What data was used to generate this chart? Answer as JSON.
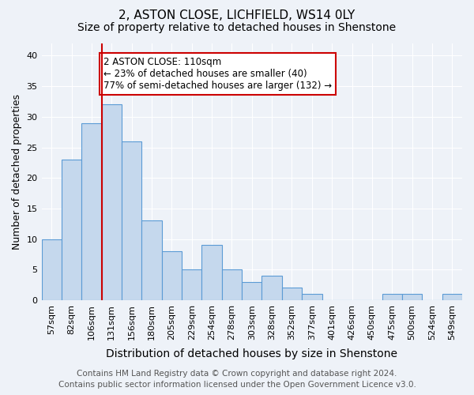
{
  "title": "2, ASTON CLOSE, LICHFIELD, WS14 0LY",
  "subtitle": "Size of property relative to detached houses in Shenstone",
  "xlabel": "Distribution of detached houses by size in Shenstone",
  "ylabel": "Number of detached properties",
  "categories": [
    "57sqm",
    "82sqm",
    "106sqm",
    "131sqm",
    "156sqm",
    "180sqm",
    "205sqm",
    "229sqm",
    "254sqm",
    "278sqm",
    "303sqm",
    "328sqm",
    "352sqm",
    "377sqm",
    "401sqm",
    "426sqm",
    "450sqm",
    "475sqm",
    "500sqm",
    "524sqm",
    "549sqm"
  ],
  "values": [
    10,
    23,
    29,
    32,
    26,
    13,
    8,
    5,
    9,
    5,
    3,
    4,
    2,
    1,
    0,
    0,
    0,
    1,
    1,
    0,
    1
  ],
  "bar_color": "#c5d8ed",
  "bar_edgecolor": "#5b9bd5",
  "vline_x": 2.5,
  "vline_color": "#cc0000",
  "annotation_text": "2 ASTON CLOSE: 110sqm\n← 23% of detached houses are smaller (40)\n77% of semi-detached houses are larger (132) →",
  "annotation_box_color": "#ffffff",
  "annotation_box_edgecolor": "#cc0000",
  "ylim": [
    0,
    42
  ],
  "yticks": [
    0,
    5,
    10,
    15,
    20,
    25,
    30,
    35,
    40
  ],
  "footer_line1": "Contains HM Land Registry data © Crown copyright and database right 2024.",
  "footer_line2": "Contains public sector information licensed under the Open Government Licence v3.0.",
  "bg_color": "#eef2f8",
  "grid_color": "#ffffff",
  "title_fontsize": 11,
  "subtitle_fontsize": 10,
  "xlabel_fontsize": 10,
  "ylabel_fontsize": 9,
  "annotation_fontsize": 8.5,
  "footer_fontsize": 7.5,
  "tick_fontsize": 8
}
